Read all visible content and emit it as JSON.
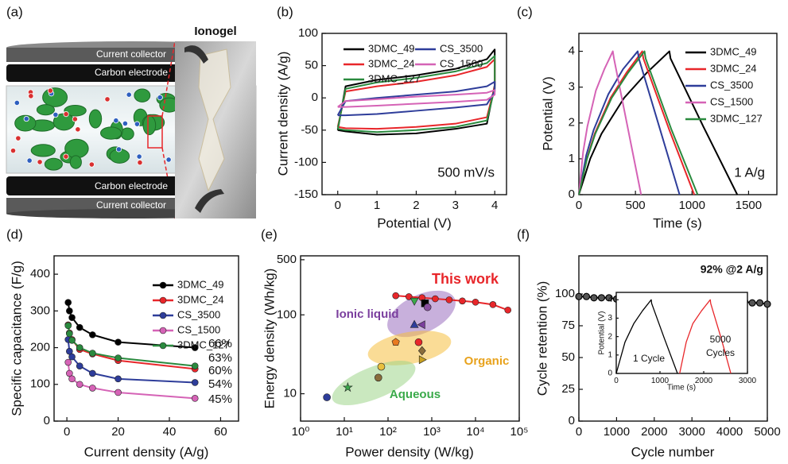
{
  "panel_a": {
    "panel": "(a)",
    "top_collector": "Current collector",
    "top_electrode": "Carbon electrode",
    "bottom_electrode": "Carbon electrode",
    "bottom_collector": "Current collector",
    "photo_label": "Ionogel"
  },
  "chart_data": [
    {
      "type": "line",
      "panel": "(b)",
      "xlabel": "Potential (V)",
      "ylabel": "Current density (A/g)",
      "xlim": [
        -0.4,
        4.3
      ],
      "xticks": [
        0,
        1,
        2,
        3,
        4
      ],
      "ylim": [
        -150,
        100
      ],
      "yticks": [
        -150,
        -100,
        -50,
        0,
        50,
        100
      ],
      "x": [
        0,
        0.2,
        1,
        2,
        3,
        3.8,
        4,
        4,
        3.8,
        3,
        2,
        1,
        0.2,
        0
      ],
      "series": [
        {
          "name": "3DMC_49",
          "color": "#000000",
          "values": [
            -50,
            18,
            28,
            35,
            45,
            60,
            75,
            20,
            -40,
            -48,
            -55,
            -57,
            -52,
            -50
          ]
        },
        {
          "name": "3DMC_24",
          "color": "#e8262a",
          "values": [
            -45,
            10,
            18,
            25,
            35,
            48,
            60,
            18,
            -30,
            -40,
            -45,
            -48,
            -47,
            -45
          ]
        },
        {
          "name": "3DMC_127",
          "color": "#2a8a3e",
          "values": [
            -48,
            14,
            24,
            31,
            41,
            54,
            65,
            15,
            -35,
            -45,
            -50,
            -53,
            -50,
            -48
          ]
        },
        {
          "name": "CS_3500",
          "color": "#2e3d9a",
          "values": [
            -27,
            -5,
            0,
            5,
            10,
            18,
            25,
            10,
            -10,
            -15,
            -20,
            -25,
            -27,
            -27
          ]
        },
        {
          "name": "CS_1500",
          "color": "#d563b6",
          "values": [
            -14,
            -5,
            -2,
            2,
            5,
            8,
            12,
            5,
            -3,
            -6,
            -9,
            -12,
            -14,
            -14
          ]
        }
      ],
      "annotations": [
        "500 mV/s"
      ]
    },
    {
      "type": "line",
      "panel": "(c)",
      "xlabel": "Time (s)",
      "ylabel": "Potential (V)",
      "xlim": [
        0,
        1750
      ],
      "xticks": [
        0,
        500,
        1000,
        1500
      ],
      "ylim": [
        0,
        4.5
      ],
      "yticks": [
        0,
        1,
        2,
        3,
        4
      ],
      "series": [
        {
          "name": "3DMC_49",
          "color": "#000000",
          "x": [
            0,
            100,
            200,
            400,
            600,
            800,
            810,
            1100,
            1400
          ],
          "values": [
            0,
            1.0,
            1.7,
            2.7,
            3.4,
            4.0,
            3.8,
            1.9,
            0
          ]
        },
        {
          "name": "3DMC_24",
          "color": "#e8262a",
          "x": [
            0,
            70,
            140,
            280,
            420,
            560,
            570,
            800,
            1020
          ],
          "values": [
            0,
            1.0,
            1.7,
            2.7,
            3.4,
            4.0,
            3.8,
            1.8,
            0
          ]
        },
        {
          "name": "CS_3500",
          "color": "#2e3d9a",
          "x": [
            0,
            65,
            130,
            260,
            390,
            520,
            530,
            710,
            890
          ],
          "values": [
            0,
            1.1,
            1.8,
            2.8,
            3.5,
            4.0,
            3.8,
            1.9,
            0
          ]
        },
        {
          "name": "CS_1500",
          "color": "#d563b6",
          "x": [
            0,
            38,
            75,
            150,
            225,
            300,
            310,
            430,
            550
          ],
          "values": [
            0,
            1.2,
            1.9,
            2.9,
            3.5,
            4.0,
            3.8,
            1.9,
            0
          ]
        },
        {
          "name": "3DMC_127",
          "color": "#2a8a3e",
          "x": [
            0,
            72,
            145,
            290,
            435,
            580,
            590,
            820,
            1050
          ],
          "values": [
            0,
            1.0,
            1.7,
            2.7,
            3.4,
            4.0,
            3.8,
            1.8,
            0
          ]
        }
      ],
      "annotations": [
        "1 A/g"
      ]
    },
    {
      "type": "line",
      "panel": "(d)",
      "xlabel": "Current density (A/g)",
      "ylabel": "Specific capacitance (F/g)",
      "xlim": [
        -5,
        67
      ],
      "xticks": [
        0,
        20,
        40,
        60
      ],
      "ylim": [
        0,
        450
      ],
      "yticks": [
        0,
        100,
        200,
        300,
        400
      ],
      "x": [
        0.5,
        1,
        2,
        5,
        10,
        20,
        50
      ],
      "series": [
        {
          "name": "3DMC_49",
          "color": "#000000",
          "marker": "circle",
          "values": [
            323,
            300,
            282,
            255,
            235,
            215,
            200
          ]
        },
        {
          "name": "3DMC_24",
          "color": "#e8262a",
          "marker": "circle",
          "values": [
            262,
            240,
            222,
            195,
            183,
            165,
            142
          ]
        },
        {
          "name": "CS_3500",
          "color": "#2e3d9a",
          "marker": "circle",
          "values": [
            222,
            190,
            175,
            150,
            130,
            115,
            105
          ]
        },
        {
          "name": "CS_1500",
          "color": "#d563b6",
          "marker": "circle",
          "values": [
            160,
            130,
            115,
            100,
            90,
            78,
            62
          ]
        },
        {
          "name": "3DMC_127",
          "color": "#2a8a3e",
          "marker": "circle",
          "values": [
            260,
            238,
            220,
            200,
            185,
            172,
            150
          ]
        }
      ],
      "annotations": [
        "66%",
        "63%",
        "60%",
        "54%",
        "45%"
      ]
    },
    {
      "type": "scatter",
      "panel": "(e)",
      "xlabel": "Power density (W/kg)",
      "ylabel": "Energy density (Wh/kg)",
      "xlog": true,
      "ylog": true,
      "xlim": [
        1,
        100000
      ],
      "ylim": [
        4.5,
        560
      ],
      "xticks": [
        {
          "value": 1,
          "label": "10⁰"
        },
        {
          "value": 10,
          "label": "10¹"
        },
        {
          "value": 100,
          "label": "10²"
        },
        {
          "value": 1000,
          "label": "10³"
        },
        {
          "value": 10000,
          "label": "10⁴"
        },
        {
          "value": 100000,
          "label": "10⁵"
        }
      ],
      "yticks": [
        10,
        100,
        500
      ],
      "series": [
        {
          "color": "#e8262a",
          "marker": "circle",
          "x": [
            150,
            300,
            600,
            1200,
            2500,
            5000,
            10000,
            25000,
            55000
          ],
          "values": [
            175,
            170,
            165,
            160,
            155,
            150,
            145,
            135,
            115
          ]
        },
        {
          "line": false,
          "x": [
            4,
            12,
            60,
            70,
            150,
            500,
            600,
            600,
            400,
            700,
            800,
            400,
            600
          ],
          "values": [
            9,
            12,
            16,
            22,
            45,
            45,
            35,
            27,
            150,
            140,
            125,
            75,
            75
          ],
          "colors": [
            "#2e3d9a",
            "#3aaa4a",
            "#8a6d3b",
            "#e8c040",
            "#e87a20",
            "#e8262a",
            "#8a6d3b",
            "#c8a020",
            "#3aaa4a",
            "#000000",
            "#8a4fa0",
            "#2e3d9a",
            "#7b3f9e"
          ],
          "markers": [
            "circle",
            "star",
            "circle",
            "circle",
            "pentagon",
            "circle",
            "diamond",
            "triangle-right",
            "triangle-down",
            "square",
            "circle",
            "triangle-up",
            "triangle-left"
          ]
        }
      ],
      "annotations": [
        "This work",
        "Ionic liquid",
        "Organic",
        "Aqueous"
      ]
    },
    {
      "type": "line",
      "panel": "(f)",
      "xlabel": "Cycle number",
      "ylabel": "Cycle retention (%)",
      "xlim": [
        0,
        5000
      ],
      "xticks": [
        0,
        1000,
        2000,
        3000,
        4000,
        5000
      ],
      "ylim": [
        0,
        130
      ],
      "yticks": [
        0,
        25,
        50,
        75,
        100
      ],
      "x": [
        0,
        200,
        400,
        600,
        800,
        1000,
        1200,
        1400,
        1600,
        1800,
        2000,
        2200,
        2400,
        2600,
        2800,
        3000,
        3200,
        3400,
        3600,
        3800,
        4000,
        4200,
        4400,
        4600,
        4800,
        5000
      ],
      "series": [
        {
          "color": "#000000",
          "marker": "circle",
          "values": [
            98,
            98,
            97,
            97,
            97,
            96,
            96,
            96,
            96,
            96,
            96,
            96,
            96,
            95,
            95,
            96,
            96,
            96,
            95,
            95,
            95,
            94,
            94,
            93,
            93,
            92
          ]
        }
      ],
      "annotations": [
        "92% @2 A/g"
      ],
      "inset": {
        "type": "line",
        "xlabel": "Time (s)",
        "ylabel": "Potential (V)",
        "xlim": [
          0,
          3000
        ],
        "xticks": [
          0,
          1000,
          2000,
          3000
        ],
        "ylim": [
          0,
          4.4
        ],
        "yticks": [
          0,
          1,
          2,
          3,
          4
        ],
        "series": [
          {
            "color": "#000000",
            "x": [
              0,
              200,
              400,
              600,
              800,
              810,
              1100,
              1400
            ],
            "values": [
              0,
              1.7,
              2.7,
              3.4,
              4.0,
              3.8,
              1.9,
              0
            ]
          },
          {
            "color": "#e8262a",
            "x": [
              1450,
              1600,
              1750,
              1950,
              2150,
              2160,
              2400,
              2620
            ],
            "values": [
              0,
              1.7,
              2.7,
              3.4,
              4.0,
              3.8,
              1.9,
              0
            ]
          }
        ],
        "annotations": [
          "1 Cycle",
          "5000",
          "Cycles"
        ]
      }
    }
  ]
}
